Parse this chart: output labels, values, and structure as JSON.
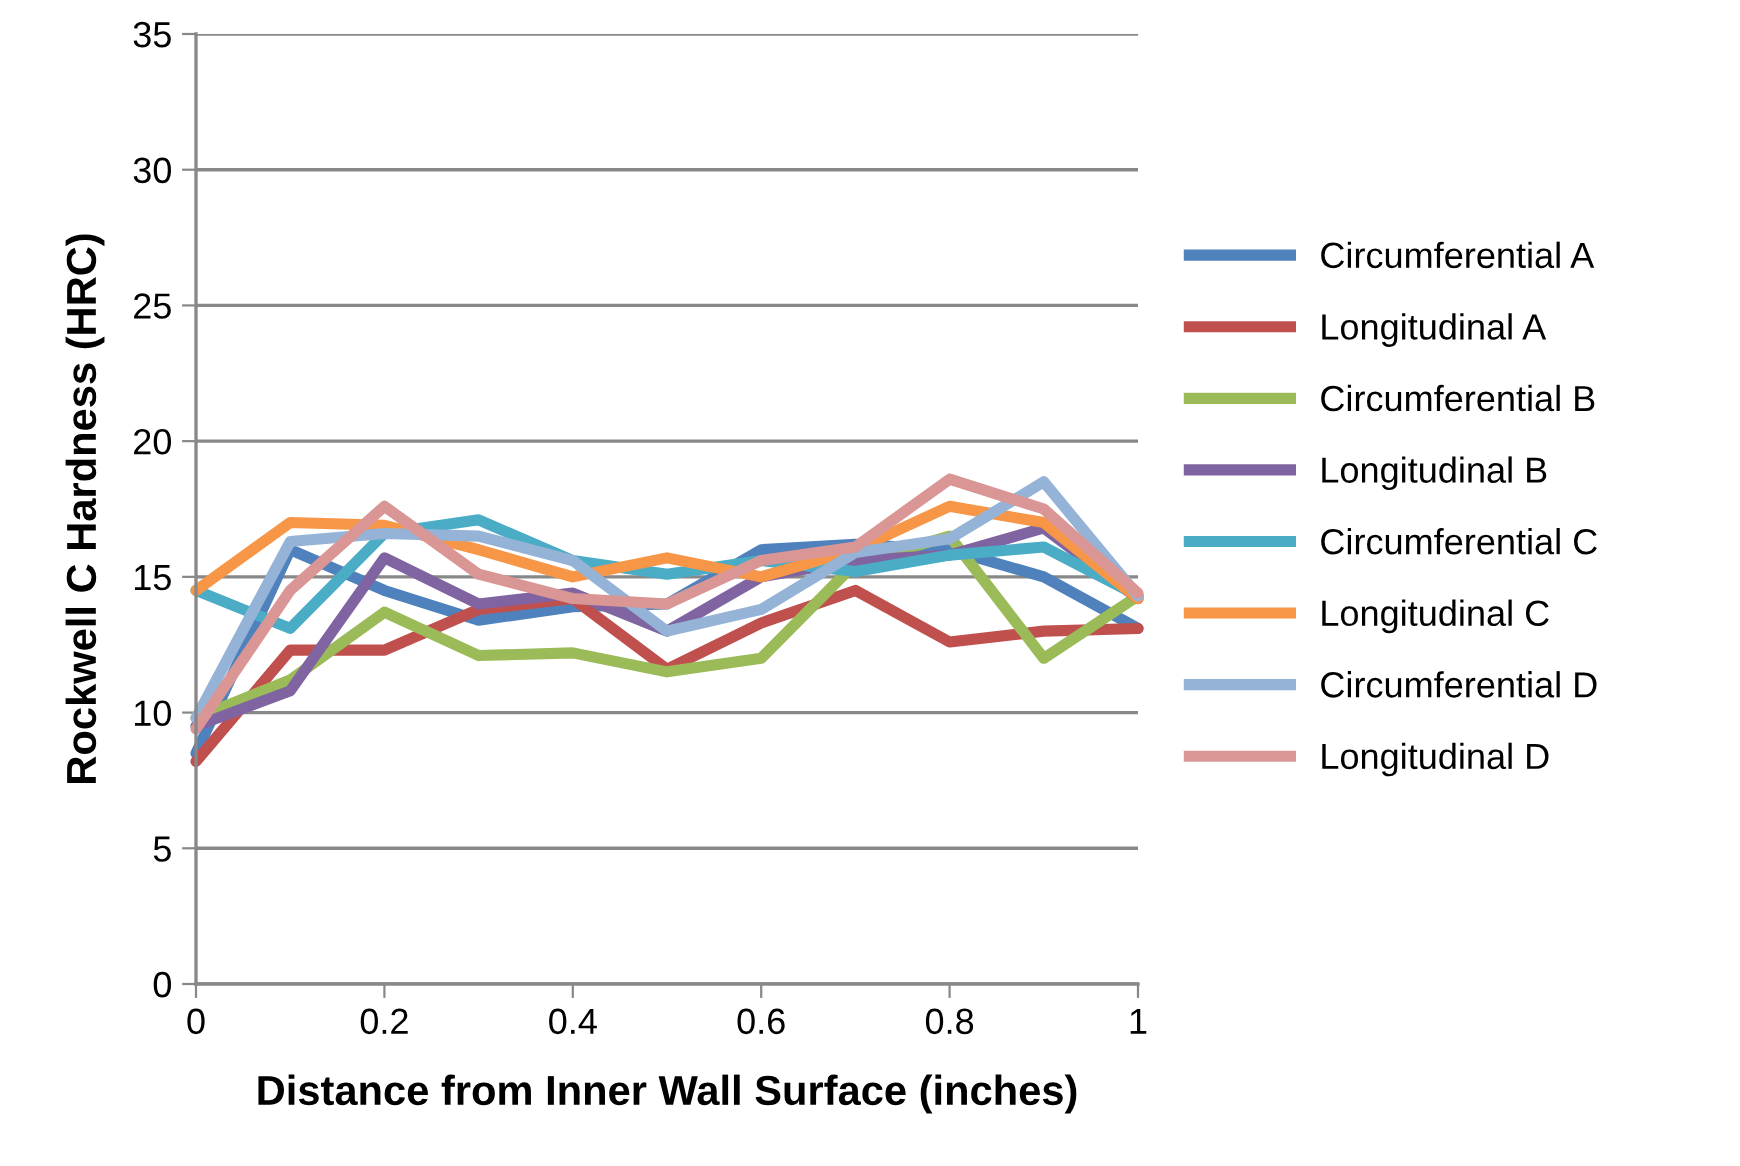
{
  "chart_data": {
    "type": "line",
    "xlabel": "Distance from Inner Wall Surface (inches)",
    "ylabel": "Rockwell C Hardness (HRC)",
    "x": [
      0,
      0.1,
      0.2,
      0.3,
      0.4,
      0.5,
      0.6,
      0.7,
      0.8,
      0.9,
      1
    ],
    "xlim": [
      0,
      1
    ],
    "xticks": [
      0,
      0.2,
      0.4,
      0.6,
      0.8,
      1
    ],
    "ylim": [
      0,
      35
    ],
    "yticks": [
      0,
      5,
      10,
      15,
      20,
      25,
      30,
      35
    ],
    "grid": "y",
    "legend": "right",
    "marker": "none",
    "line_style": "solid",
    "series": [
      {
        "name": "Circumferential A",
        "color": "#4f81bd",
        "values": [
          8.5,
          16,
          14.5,
          13.4,
          13.9,
          14,
          16,
          16.2,
          16,
          15,
          13.1
        ]
      },
      {
        "name": "Longitudinal A",
        "color": "#c0504d",
        "values": [
          8.2,
          12.3,
          12.3,
          13.8,
          14.2,
          11.6,
          13.3,
          14.5,
          12.6,
          13,
          13.1
        ]
      },
      {
        "name": "Circumferential B",
        "color": "#9bbb59",
        "values": [
          9.8,
          11.2,
          13.7,
          12.1,
          12.2,
          11.5,
          12,
          15.5,
          16.5,
          12,
          14.3
        ]
      },
      {
        "name": "Longitudinal B",
        "color": "#8064a2",
        "values": [
          9.5,
          10.8,
          15.7,
          14,
          14.4,
          13,
          15,
          15.6,
          15.8,
          16.8,
          14.2
        ]
      },
      {
        "name": "Circumferential C",
        "color": "#4bacc6",
        "values": [
          14.5,
          13.1,
          16.6,
          17.1,
          15.6,
          15.1,
          15.6,
          15.2,
          15.8,
          16.1,
          14.3
        ]
      },
      {
        "name": "Longitudinal C",
        "color": "#f79646",
        "values": [
          14.5,
          17,
          16.9,
          16,
          15,
          15.7,
          15,
          16,
          17.6,
          17,
          14.2
        ]
      },
      {
        "name": "Circumferential D",
        "color": "#95b3d7",
        "values": [
          9.8,
          16.3,
          16.6,
          16.5,
          15.6,
          13,
          13.8,
          15.9,
          16.4,
          18.5,
          14.3
        ]
      },
      {
        "name": "Longitudinal D",
        "color": "#d99694",
        "values": [
          9.4,
          14.5,
          17.6,
          15.1,
          14.2,
          14,
          15.6,
          16.1,
          18.6,
          17.5,
          14.4
        ]
      }
    ]
  }
}
